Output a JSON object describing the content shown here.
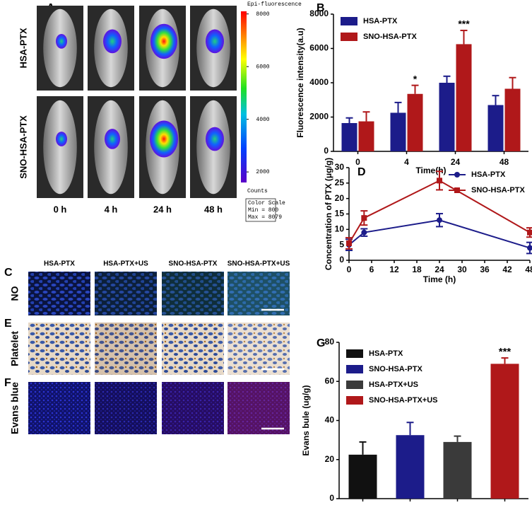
{
  "figure": {
    "panel_labels": [
      "A",
      "B",
      "C",
      "D",
      "E",
      "F",
      "G"
    ],
    "imaging": {
      "rows": [
        "HSA-PTX",
        "SNO-HSA-PTX"
      ],
      "columns": [
        "0 h",
        "4 h",
        "24 h",
        "48 h"
      ],
      "colorbar": {
        "title": "Epi-fluorescence",
        "lim": [
          1600,
          8100
        ],
        "ticks": [
          2000,
          4000,
          6000,
          8000
        ],
        "unit": "Counts",
        "scale_title": "Color Scale",
        "min_label": "Min = 800",
        "max_label": "Max = 8079"
      }
    },
    "histology": {
      "columns": [
        "HSA-PTX",
        "HSA-PTX+US",
        "SNO-HSA-PTX",
        "SNO-HSA-PTX+US"
      ],
      "rows": [
        {
          "label": "NO",
          "color": "#3aa82a"
        },
        {
          "label": "Platelet",
          "color": "#000000"
        },
        {
          "label": "Evans blue",
          "color": "#e8201e"
        }
      ]
    }
  },
  "chart_data": [
    {
      "type": "bar",
      "categories": [
        "0",
        "4",
        "24",
        "48"
      ],
      "y_label": "Fluorescence intensity(a.u)",
      "x_label": "Time(h)",
      "series": [
        {
          "name": "HSA-PTX",
          "color": "#1c1c8a",
          "values": [
            1650,
            2250,
            4000,
            2700
          ],
          "errors": [
            300,
            600,
            380,
            550
          ],
          "labels": [
            null,
            null,
            null,
            null
          ]
        },
        {
          "name": "SNO-HSA-PTX",
          "color": "#b0181a",
          "values": [
            1750,
            3350,
            6250,
            3650
          ],
          "errors": [
            550,
            500,
            800,
            650
          ],
          "labels": [
            null,
            "*",
            "***",
            null
          ]
        }
      ],
      "ylim": [
        0,
        8000
      ],
      "yticks": [
        0,
        2000,
        4000,
        6000,
        8000
      ],
      "legend": "top-left"
    },
    {
      "type": "line",
      "x": [
        0,
        4,
        24,
        48
      ],
      "y_label": "Concentration of PTX (μg/g)",
      "x_label": "Time (h)",
      "series": [
        {
          "name": "HSA-PTX",
          "color": "#1c1c8a",
          "marker": "circle",
          "values": [
            5,
            9,
            13,
            4
          ],
          "errors": [
            1.8,
            1.2,
            2.1,
            1.8
          ]
        },
        {
          "name": "SNO-HSA-PTX",
          "color": "#b0181a",
          "marker": "square",
          "values": [
            5.5,
            13.7,
            25.8,
            9
          ],
          "errors": [
            1.8,
            2.3,
            3,
            1.5
          ]
        }
      ],
      "xlim": [
        0,
        48
      ],
      "xticks": [
        0,
        6,
        12,
        18,
        24,
        30,
        36,
        42,
        48
      ],
      "ylim": [
        0,
        30
      ],
      "yticks": [
        0,
        5,
        10,
        15,
        20,
        25,
        30
      ],
      "legend": "top-right"
    },
    {
      "type": "bar",
      "categories": [
        "HSA-PTX",
        "SNO-HSA-PTX",
        "HSA-PTX+US",
        "SNO-HSA-PTX+US"
      ],
      "colors": [
        "#111111",
        "#1c1c8a",
        "#3a3a3a",
        "#b0181a"
      ],
      "y_label": "Evans bule (ug/g)",
      "values": [
        22.5,
        32.5,
        29,
        69
      ],
      "errors": [
        6.5,
        6.5,
        3,
        3
      ],
      "labels": [
        null,
        null,
        null,
        "***"
      ],
      "ylim": [
        0,
        80
      ],
      "yticks": [
        0,
        20,
        40,
        60,
        80
      ],
      "legend": "top-left"
    }
  ]
}
